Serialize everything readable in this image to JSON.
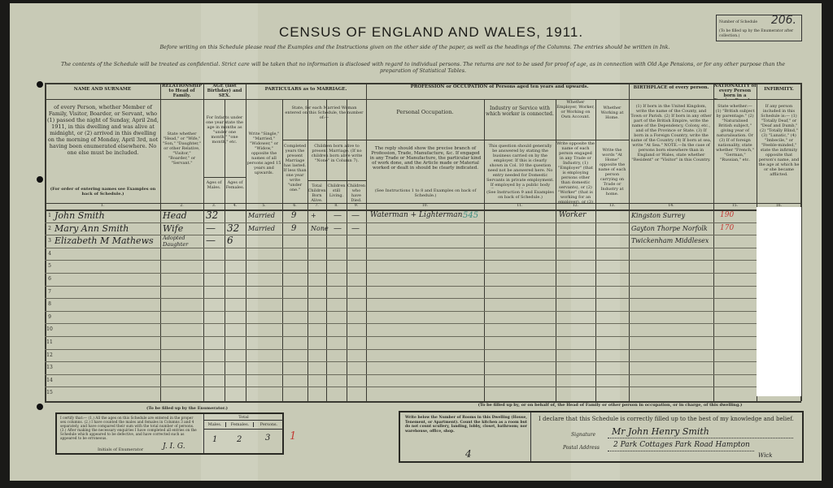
{
  "header": {
    "title": "CENSUS OF ENGLAND AND WALES, 1911.",
    "instruction_1": "Before writing on this Schedule please read the Examples and the Instructions given on the other side of the paper, as well as the headings of the Columns. The entries should be written in Ink.",
    "instruction_2": "The contents of the Schedule will be treated as confidential. Strict care will be taken that no information is disclosed with regard to individual persons. The returns are not to be used for proof of age, as in connection with Old Age Pensions, or for any other purpose than the preparation of Statistical Tables.",
    "schedule_label": "Number of Schedule",
    "schedule_note": "(To be filled up by the Enumerator after collection.)",
    "schedule_number": "206."
  },
  "columns": {
    "name": {
      "title": "NAME AND SURNAME",
      "body": "of every Person, whether Member of Family, Visitor, Boarder, or Servant, who (1) passed the night of Sunday, April 2nd, 1911, in this dwelling and was alive at midnight, or (2) arrived in this dwelling on the morning of Monday, April 3rd, not having been enumerated elsewhere. No one else must be included.",
      "note": "(For order of entering names see Examples on back of Schedule.)"
    },
    "relationship": {
      "title": "RELATIONSHIP to Head of Family.",
      "body": "State whether \"Head,\" or \"Wife,\" \"Son,\" \"Daughter,\" or other Relative, \"Visitor,\" \"Boarder,\" or \"Servant.\""
    },
    "age": {
      "title": "AGE (last Birthday) and SEX.",
      "body": "For Infants under one year state the age in months as \"under one month,\" \"one month,\" etc.",
      "males": "Ages of Males.",
      "females": "Ages of Females."
    },
    "marriage": {
      "title": "PARTICULARS as to MARRIAGE.",
      "condition": "Write \"Single,\" \"Married,\" \"Widower,\" or \"Widow,\" opposite the names of all persons aged 15 years and upwards.",
      "married_woman": "State, for each Married Woman entered on this Schedule, the number of:—",
      "years": "Completed years the present Marriage has lasted. If less than one year write \"under one.\"",
      "children": "Children born alive to present Marriage. (If no children born alive write \"None\" in Column 7).",
      "total": "Total Children Born Alive.",
      "living": "Children still Living.",
      "died": "Children who have Died."
    },
    "occupation": {
      "title": "PROFESSION or OCCUPATION of Persons aged ten years and upwards.",
      "personal": "Personal Occupation.",
      "personal_body": "The reply should show the precise branch of Profession, Trade, Manufacture, &c. If engaged in any Trade or Manufacture, the particular kind of work done, and the Article made or Material worked or dealt in should be clearly indicated.",
      "personal_note": "(See Instructions 1 to 8 and Examples on back of Schedule.)",
      "industry": "Industry or Service with which worker is connected.",
      "industry_body": "This question should generally be answered by stating the business carried on by the employer. If this is clearly shown in Col. 10 the question need not be answered here. No entry needed for Domestic Servants in private employment. If employed by a public body (Government, Municipal, etc.) state what body.",
      "industry_note": "(See Instruction 9 and Examples on back of Schedule.)",
      "employer": "Whether Employer, Worker, or Working on Own Account.",
      "employer_body": "Write opposite the name of each person engaged in any Trade or Industry, (1) \"Employer\" (that is employing persons other than domestic servants), or (2) \"Worker\" (that is working for an employer), or (3) \"Own Account\" (that is neither employing others nor working for a trade employer).",
      "home": "Whether Working at Home.",
      "home_body": "Write the words \"At Home\" opposite the name of each person carrying on Trade or Industry at home."
    },
    "birthplace": {
      "title": "BIRTHPLACE of every person.",
      "body": "(1) If born in the United Kingdom, write the name of the County, and Town or Parish. (2) If born in any other part of the British Empire, write the name of the Dependency, Colony, etc., and of the Province or State. (3) If born in a Foreign Country, write the name of the Country. (4) If born at sea, write \"At Sea.\" NOTE.—In the case of persons born elsewhere than in England or Wales, state whether \"Resident\" or \"Visitor\" in this Country."
    },
    "nationality": {
      "title": "NATIONALITY of every Person born in a Foreign Country.",
      "body": "State whether:— (1) \"British subject by parentage.\" (2) \"Naturalised British subject,\" giving year of naturalisation. Or (3) If of foreign nationality, state whether \"French,\" \"German,\" \"Russian,\" etc."
    },
    "infirmity": {
      "title": "INFIRMITY.",
      "body": "If any person included in this Schedule is:— (1) \"Totally Deaf,\" or \"Deaf and Dumb,\" (2) \"Totally Blind,\" (3) \"Lunatic,\" (4) \"Imbecile,\" or \"Feeble-minded,\" state the infirmity opposite that person's name, and the age at which he or she became afflicted."
    },
    "numbers": [
      "1.",
      "2.",
      "3.",
      "4.",
      "5.",
      "6.",
      "7.",
      "8.",
      "9.",
      "10.",
      "11.",
      "12.",
      "13.",
      "14.",
      "15.",
      "16."
    ]
  },
  "rows": [
    {
      "n": "1",
      "name": "John Smith",
      "relationship": "Head",
      "male_age": "32",
      "female_age": "",
      "marriage": "Married",
      "years": "9",
      "total": "+",
      "living": "—",
      "died": "—",
      "occupation": "Waterman + Lighterman",
      "occupation_code": "545",
      "industry": "",
      "employer": "Worker",
      "home": "",
      "birthplace": "Kingston Surrey",
      "birth_code": "190"
    },
    {
      "n": "2",
      "name": "Mary Ann Smith",
      "relationship": "Wife",
      "male_age": "—",
      "female_age": "32",
      "marriage": "Married",
      "years": "9",
      "total": "None",
      "living": "—",
      "died": "—",
      "occupation": "",
      "occupation_code": "",
      "industry": "",
      "employer": "",
      "home": "",
      "birthplace": "Gayton Thorpe Norfolk",
      "birth_code": "170"
    },
    {
      "n": "3",
      "name": "Elizabeth M Mathews",
      "relationship": "Adopted Daughter",
      "male_age": "—",
      "female_age": "6",
      "marriage": "",
      "years": "",
      "total": "",
      "living": "",
      "died": "",
      "occupation": "",
      "occupation_code": "",
      "industry": "",
      "employer": "",
      "home": "",
      "birthplace": "Twickenham Middlesex",
      "birth_code": ""
    },
    {
      "n": "4"
    },
    {
      "n": "5"
    },
    {
      "n": "6"
    },
    {
      "n": "7"
    },
    {
      "n": "8"
    },
    {
      "n": "9"
    },
    {
      "n": "10"
    },
    {
      "n": "11"
    },
    {
      "n": "12"
    },
    {
      "n": "13"
    },
    {
      "n": "14"
    },
    {
      "n": "15"
    }
  ],
  "enumerator": {
    "heading": "(To be filled up by the Enumerator.)",
    "certify": "I certify that:— (1.) All the ages on this Schedule are entered in the proper sex columns. (2.) I have counted the males and females in Columns 3 and 4 separately, and have compared their sum with the total number of persons. (3.) After making the necessary enquiries I have completed all entries on the Schedule which appeared to be defective, and have corrected such as appeared to be erroneous.",
    "initials_label": "Initials of Enumerator",
    "initials": "J. I. G.",
    "total_label": "Total",
    "males_label": "Males.",
    "females_label": "Females.",
    "persons_label": "Persons.",
    "males": "1",
    "females": "2",
    "persons": "3",
    "red_mark": "1"
  },
  "head_section": {
    "heading": "(To be filled up by, or on behalf of, the Head of Family or other person in occupation, or in charge, of this dwelling.)",
    "rooms_instruction": "Write below the Number of Rooms in this Dwelling (House, Tenement, or Apartment). Count the kitchen as a room but do not count scullery, landing, lobby, closet, bathroom; nor warehouse, office, shop.",
    "rooms": "4",
    "declaration": "I declare that this Schedule is correctly filled up to the best of my knowledge and belief.",
    "signature_label": "Signature",
    "signature": "Mr John Henry Smith",
    "address_label": "Postal Address",
    "address": "2 Park Cottages Park Road Hampton",
    "address_2": "Wick"
  },
  "colors": {
    "paper": "#c8cab6",
    "ink": "#222222",
    "red_ink": "#c23a34",
    "teal_ink": "#3e8c80"
  }
}
